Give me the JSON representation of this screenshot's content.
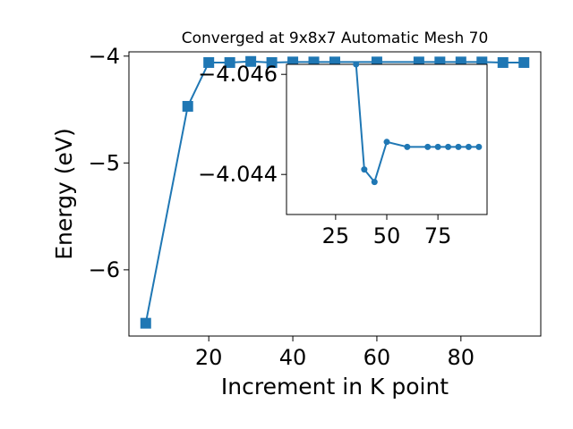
{
  "chart_data": [
    {
      "type": "line",
      "title": "Converged at 9x8x7 Automatic Mesh 70",
      "xlabel": "Increment in K point",
      "ylabel": "Energy (eV)",
      "xlim": [
        1,
        99
      ],
      "ylim": [
        -6.62,
        -3.96
      ],
      "xticks": [
        20,
        40,
        60,
        80
      ],
      "yticks": [
        -6,
        -5,
        -4
      ],
      "ytick_labels": [
        "−6",
        "−5",
        "−4"
      ],
      "grid": false,
      "marker": "square",
      "color": "#1f77b4",
      "series": [
        {
          "x": [
            5,
            15,
            20,
            25,
            30,
            35,
            40,
            45,
            50,
            60,
            70,
            75,
            80,
            85,
            90,
            95
          ],
          "y": [
            -6.5,
            -4.47,
            -4.06,
            -4.06,
            -4.05,
            -4.06,
            -4.055,
            -4.055,
            -4.055,
            -4.055,
            -4.055,
            -4.055,
            -4.055,
            -4.055,
            -4.06,
            -4.06
          ]
        }
      ]
    },
    {
      "type": "line",
      "inset": true,
      "xlim": [
        1,
        99
      ],
      "ylim": [
        -4.0462,
        -4.0432
      ],
      "xticks": [
        25,
        50,
        75
      ],
      "yticks": [
        -4.046,
        -4.044
      ],
      "ytick_labels": [
        "−4.046",
        "−4.044"
      ],
      "y_inverted": true,
      "marker": "circle",
      "color": "#1f77b4",
      "series": [
        {
          "x": [
            35,
            39,
            44,
            50,
            60,
            70,
            75,
            80,
            85,
            90,
            95
          ],
          "y": [
            -4.0462,
            -4.0441,
            -4.04385,
            -4.04465,
            -4.04455,
            -4.04455,
            -4.04455,
            -4.04455,
            -4.04455,
            -4.04455,
            -4.04455
          ]
        }
      ]
    }
  ]
}
